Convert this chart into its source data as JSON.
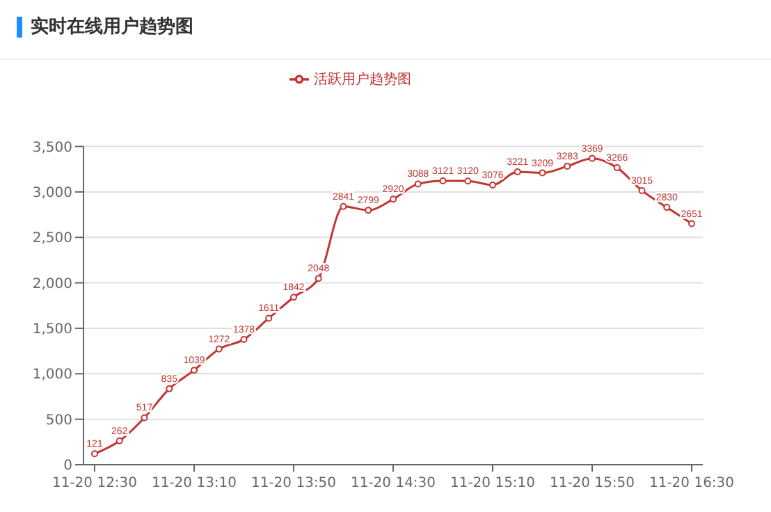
{
  "chart_data": {
    "type": "line",
    "title": "实时在线用户趋势图",
    "categories": [
      "11-20 12:30",
      null,
      null,
      null,
      "11-20 13:10",
      null,
      null,
      null,
      "11-20 13:50",
      null,
      null,
      null,
      "11-20 14:30",
      null,
      null,
      null,
      "11-20 15:10",
      null,
      null,
      null,
      "11-20 15:50",
      null,
      null,
      null,
      "11-20 16:30"
    ],
    "series": [
      {
        "name": "活跃用户趋势图",
        "color": "#c23531",
        "values": [
          121,
          262,
          517,
          835,
          1039,
          1272,
          1378,
          1611,
          1842,
          2048,
          2841,
          2799,
          2920,
          3088,
          3121,
          3120,
          3076,
          3221,
          3209,
          3283,
          3369,
          3266,
          3015,
          2830,
          2651
        ]
      }
    ],
    "ylim": [
      0,
      3500
    ],
    "yticks": [
      {
        "value": 0,
        "label": "0"
      },
      {
        "value": 500,
        "label": "500"
      },
      {
        "value": 1000,
        "label": "1,000"
      },
      {
        "value": 1500,
        "label": "1,500"
      },
      {
        "value": 2000,
        "label": "2,000"
      },
      {
        "value": 2500,
        "label": "2,500"
      },
      {
        "value": 3000,
        "label": "3,000"
      },
      {
        "value": 3500,
        "label": "3,500"
      }
    ],
    "grid": "y",
    "legend": "top",
    "marker": "circle",
    "line_style": "solid",
    "data_labels": true
  }
}
